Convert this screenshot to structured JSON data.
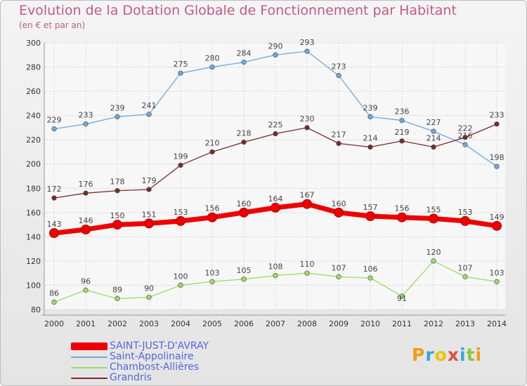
{
  "header": {
    "title": "Evolution de la Dotation Globale de Fonctionnement par Habitant",
    "subtitle": "(en € et par an)"
  },
  "logo": {
    "text": "Proxiti"
  },
  "chart_data": {
    "type": "line",
    "title": "Evolution de la Dotation Globale de Fonctionnement par Habitant",
    "subtitle": "(en € et par an)",
    "x": [
      "2000",
      "2001",
      "2002",
      "2003",
      "2004",
      "2005",
      "2006",
      "2007",
      "2008",
      "2009",
      "2010",
      "2011",
      "2012",
      "2013",
      "2014"
    ],
    "ylim": [
      80,
      300
    ],
    "yticks": [
      80,
      100,
      120,
      140,
      160,
      180,
      200,
      220,
      240,
      260,
      280,
      300
    ],
    "grid": true,
    "legend_position": "bottom-left",
    "series": [
      {
        "name": "SAINT-JUST-D'AVRAY",
        "color": "#ee0000",
        "values": [
          143,
          146,
          150,
          151,
          153,
          156,
          160,
          164,
          167,
          160,
          157,
          156,
          155,
          153,
          149
        ]
      },
      {
        "name": "Saint-Appolinaire",
        "color": "#6fa8dc",
        "values": [
          229,
          233,
          239,
          241,
          275,
          280,
          284,
          290,
          293,
          273,
          239,
          236,
          227,
          216,
          198
        ]
      },
      {
        "name": "Chambost-Allières",
        "color": "#99dd66",
        "values": [
          86,
          96,
          89,
          90,
          100,
          103,
          105,
          108,
          110,
          107,
          106,
          91,
          120,
          107,
          103
        ]
      },
      {
        "name": "Grandris",
        "color": "#7a2a2a",
        "values": [
          172,
          176,
          178,
          179,
          199,
          210,
          218,
          225,
          230,
          217,
          214,
          219,
          214,
          222,
          233
        ]
      }
    ]
  }
}
